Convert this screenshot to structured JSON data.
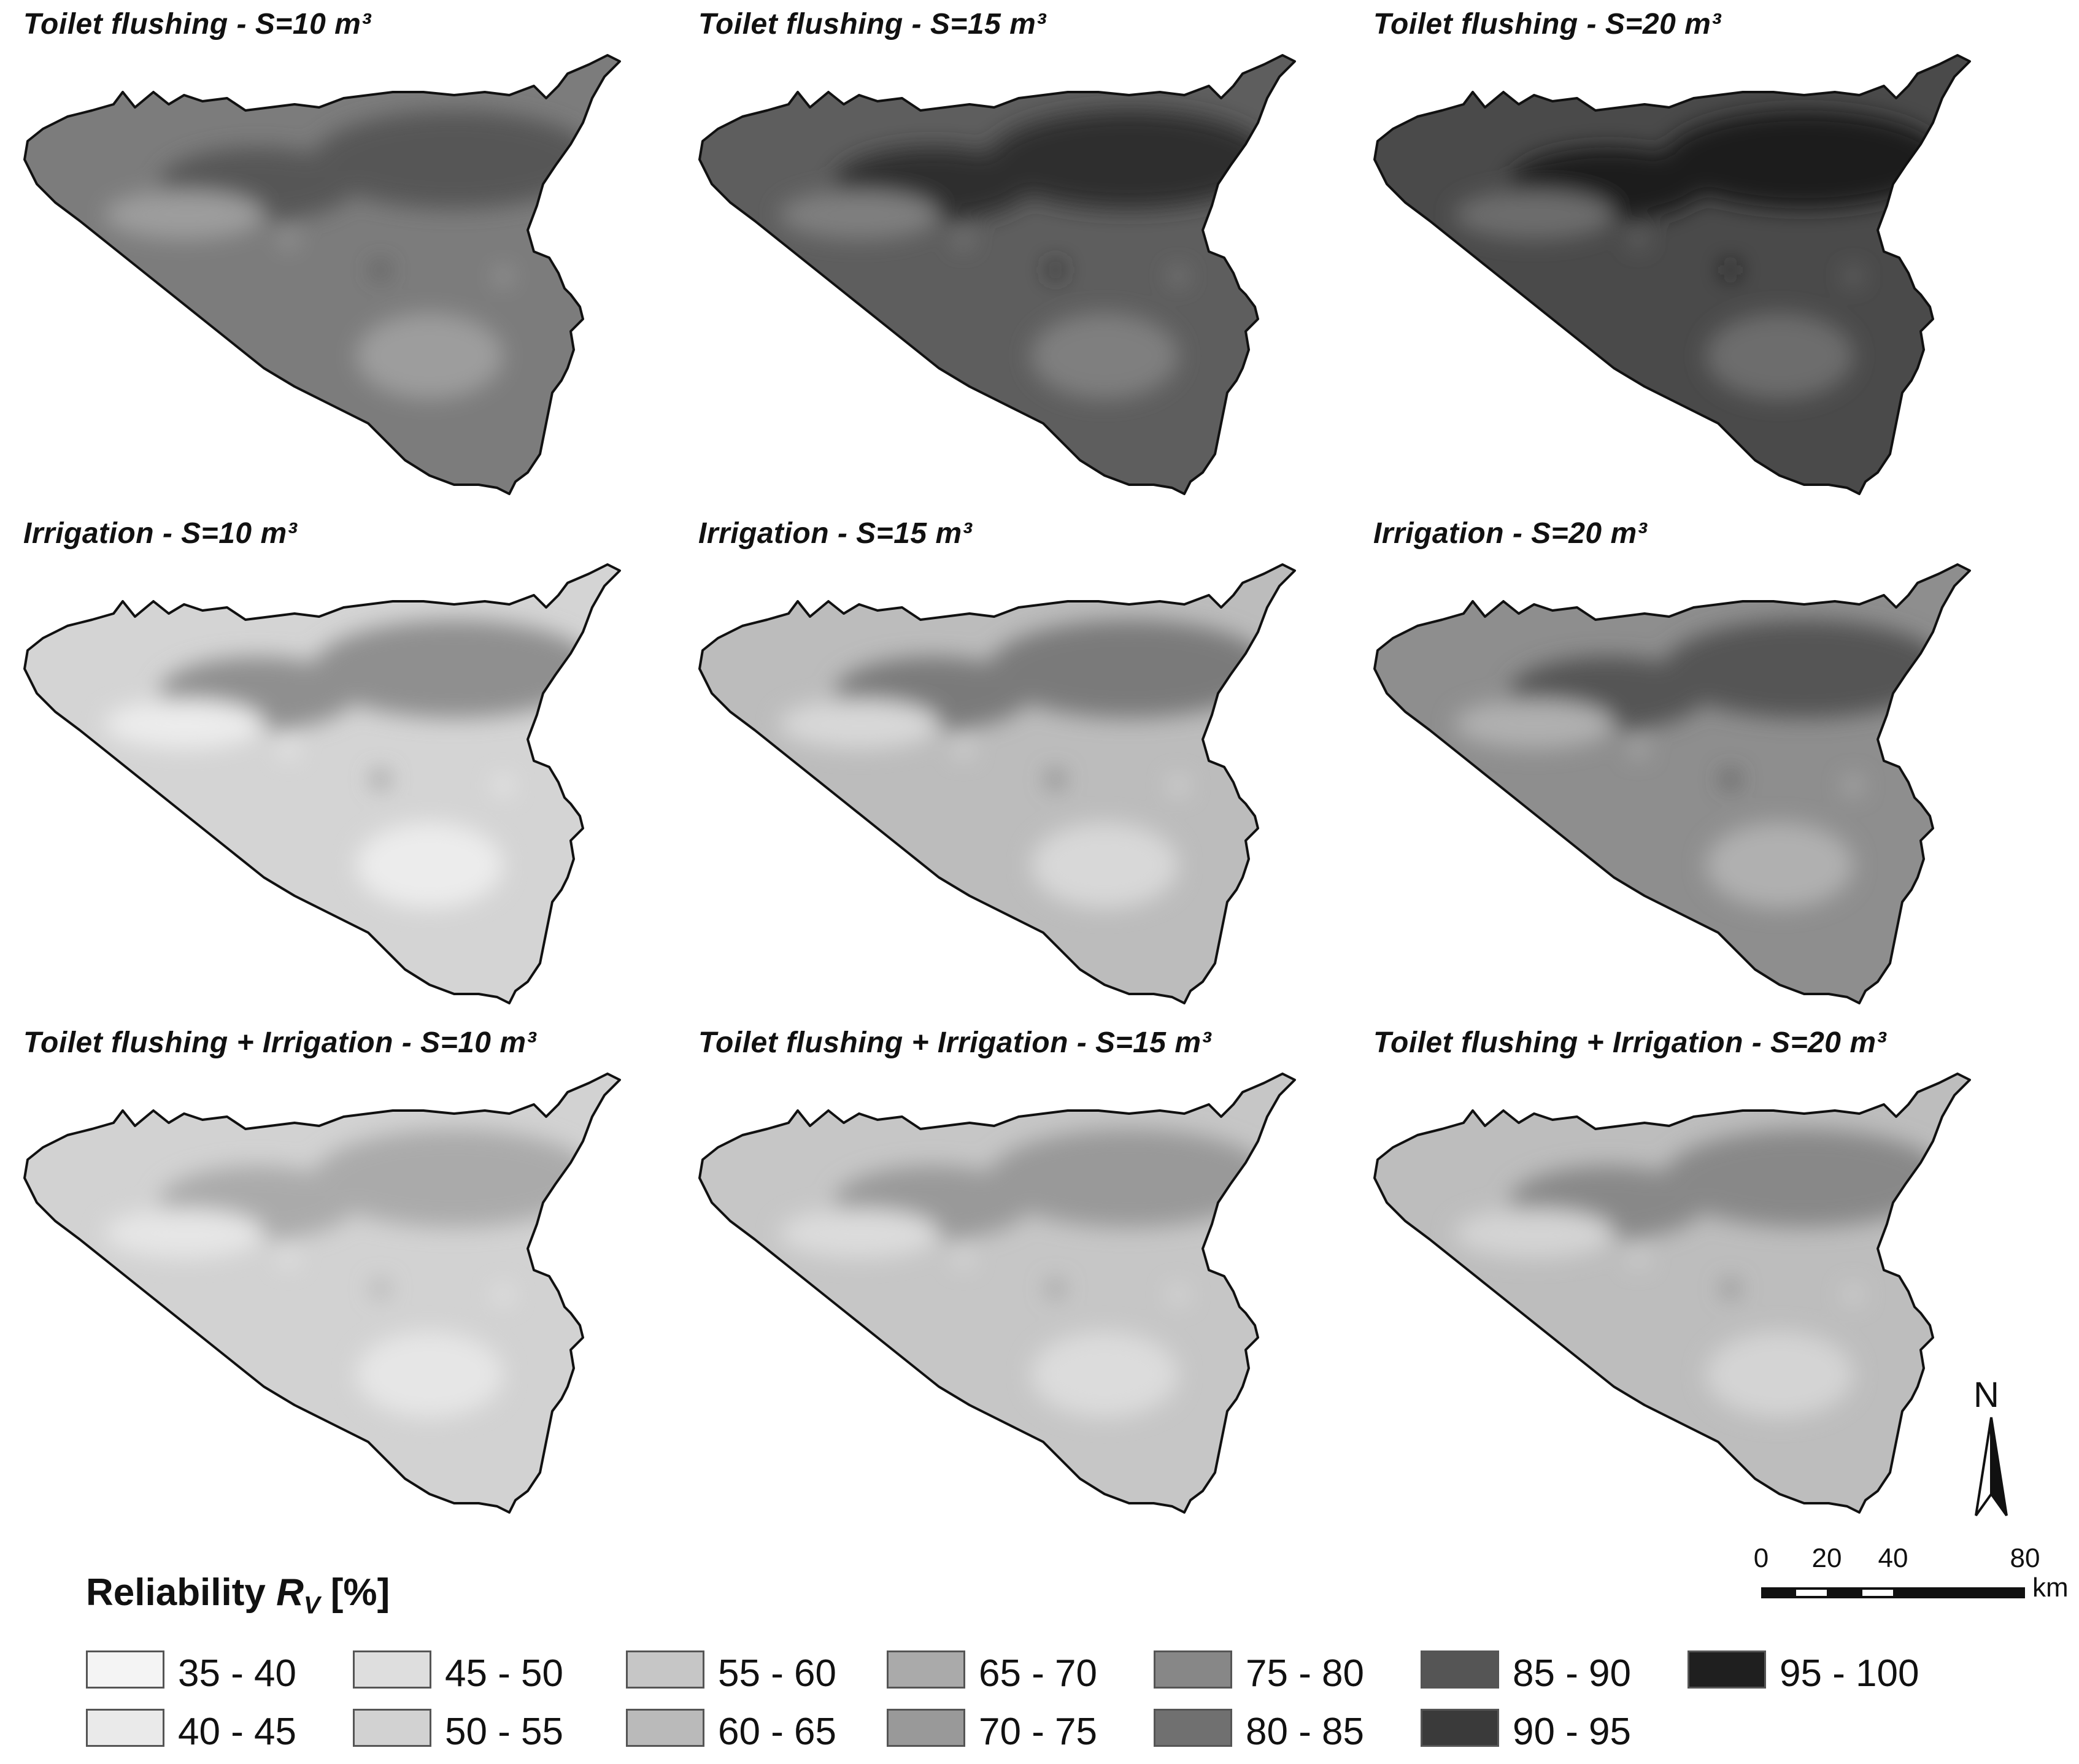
{
  "panels": [
    {
      "title": "Toilet flushing - S=10 m³",
      "base": "#7c7c7c",
      "accent": "#565656",
      "light": "#9d9d9d"
    },
    {
      "title": "Toilet flushing - S=15 m³",
      "base": "#5e5e5e",
      "accent": "#2e2e2e",
      "light": "#7f7f7f"
    },
    {
      "title": "Toilet flushing - S=20 m³",
      "base": "#4a4a4a",
      "accent": "#1f1f1f",
      "light": "#6d6d6d"
    },
    {
      "title": "Irrigation - S=10 m³",
      "base": "#d4d4d4",
      "accent": "#8f8f8f",
      "light": "#ececec"
    },
    {
      "title": "Irrigation - S=15 m³",
      "base": "#bcbcbc",
      "accent": "#7a7a7a",
      "light": "#d8d8d8"
    },
    {
      "title": "Irrigation - S=20 m³",
      "base": "#8e8e8e",
      "accent": "#555555",
      "light": "#b0b0b0"
    },
    {
      "title": "Toilet flushing + Irrigation - S=10 m³",
      "base": "#d2d2d2",
      "accent": "#aaaaaa",
      "light": "#e6e6e6"
    },
    {
      "title": "Toilet flushing + Irrigation - S=15 m³",
      "base": "#c6c6c6",
      "accent": "#999999",
      "light": "#dcdcdc"
    },
    {
      "title": "Toilet flushing + Irrigation - S=20 m³",
      "base": "#bdbdbd",
      "accent": "#888888",
      "light": "#d4d4d4"
    }
  ],
  "legend": {
    "title_prefix": "Reliability ",
    "title_symbol": "R",
    "title_subscript": "V",
    "title_suffix": " [%]",
    "classes": [
      {
        "label": "35 - 40",
        "color": "#f4f4f4"
      },
      {
        "label": "40 - 45",
        "color": "#eaeaea"
      },
      {
        "label": "45 - 50",
        "color": "#dedede"
      },
      {
        "label": "50 - 55",
        "color": "#d2d2d2"
      },
      {
        "label": "55 - 60",
        "color": "#c6c6c6"
      },
      {
        "label": "60 - 65",
        "color": "#bababa"
      },
      {
        "label": "65 - 70",
        "color": "#aaaaaa"
      },
      {
        "label": "70 - 75",
        "color": "#999999"
      },
      {
        "label": "75 - 80",
        "color": "#878787"
      },
      {
        "label": "80 - 85",
        "color": "#707070"
      },
      {
        "label": "85 - 90",
        "color": "#555555"
      },
      {
        "label": "90 - 95",
        "color": "#3a3a3a"
      },
      {
        "label": "95 - 100",
        "color": "#1f1f1f"
      }
    ]
  },
  "north_arrow": {
    "label": "N",
    "icon": "north-arrow-icon"
  },
  "scale_bar": {
    "ticks": [
      "0",
      "20",
      "40",
      "80"
    ],
    "unit": "km"
  }
}
